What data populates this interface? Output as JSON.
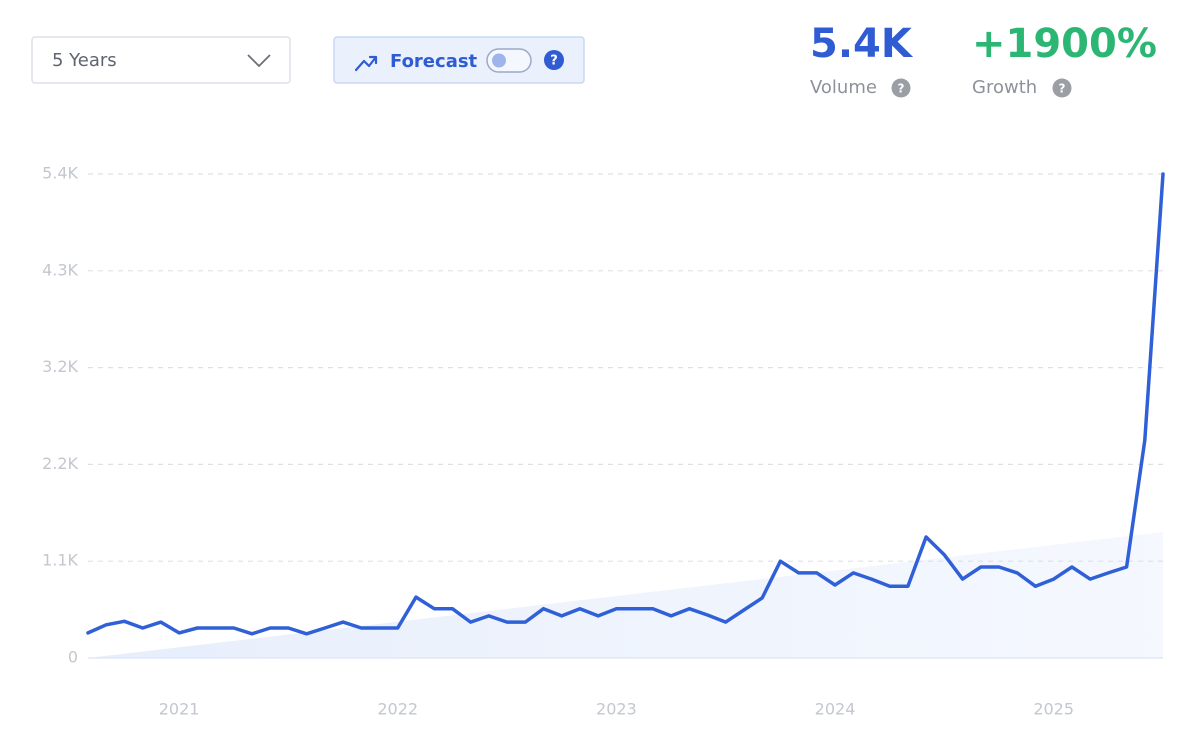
{
  "controls": {
    "timeframe": "5 Years",
    "forecast": "Forecast",
    "help": "?"
  },
  "stats": [
    {
      "value": "5.4K",
      "label": "Volume"
    },
    {
      "value": "+1900%",
      "label": "Growth"
    }
  ],
  "chart_data": {
    "type": "line",
    "categories": [
      null,
      null,
      null,
      null,
      null,
      "2021",
      null,
      null,
      null,
      null,
      null,
      null,
      null,
      null,
      null,
      null,
      null,
      "2022",
      null,
      null,
      null,
      null,
      null,
      null,
      null,
      null,
      null,
      null,
      null,
      "2023",
      null,
      null,
      null,
      null,
      null,
      null,
      null,
      null,
      null,
      null,
      null,
      "2024",
      null,
      null,
      null,
      null,
      null,
      null,
      null,
      null,
      null,
      null,
      null,
      "2025",
      null,
      null,
      null,
      null,
      null,
      null
    ],
    "series": [
      {
        "color": "#3060d8",
        "values": [
          280,
          370,
          410,
          335,
          400,
          280,
          335,
          335,
          335,
          270,
          335,
          335,
          270,
          335,
          400,
          335,
          335,
          335,
          680,
          550,
          550,
          400,
          470,
          400,
          400,
          550,
          470,
          550,
          470,
          550,
          550,
          550,
          470,
          550,
          480,
          400,
          535,
          670,
          1080,
          950,
          950,
          815,
          950,
          880,
          800,
          800,
          1350,
          1150,
          880,
          1015,
          1015,
          950,
          800,
          880,
          1015,
          880,
          950,
          1015,
          2430,
          5400
        ]
      }
    ],
    "ylim": [
      0,
      5400
    ],
    "yticks": [
      0,
      {
        "value": 1080,
        "label": "1.1K"
      },
      {
        "value": 2160,
        "label": "2.2K"
      },
      {
        "value": 3240,
        "label": "3.2K"
      },
      {
        "value": 4320,
        "label": "4.3K"
      },
      {
        "value": 5400,
        "label": "5.4K"
      }
    ],
    "grid": true
  }
}
